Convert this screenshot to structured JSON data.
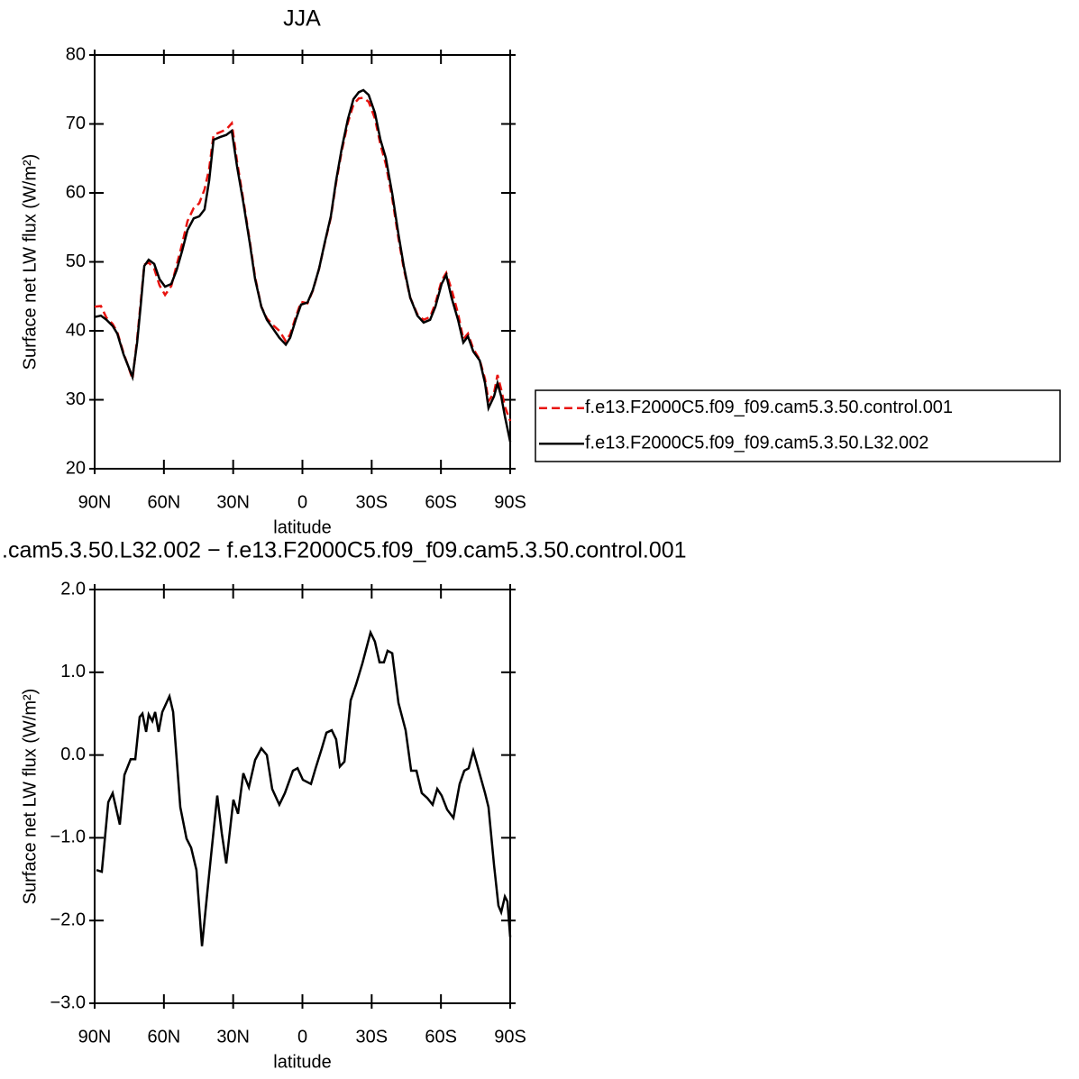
{
  "chart_data": [
    {
      "type": "line",
      "title": "JJA",
      "x_label": "latitude",
      "y_label": "Surface net LW flux (W/m²)",
      "xlim": [
        90,
        -90
      ],
      "xticks": [
        {
          "value": 90,
          "label": "90N"
        },
        {
          "value": 60,
          "label": "60N"
        },
        {
          "value": 30,
          "label": "30N"
        },
        {
          "value": 0,
          "label": "0"
        },
        {
          "value": -30,
          "label": "30S"
        },
        {
          "value": -60,
          "label": "60S"
        },
        {
          "value": -90,
          "label": "90S"
        }
      ],
      "ylim": [
        20,
        80
      ],
      "yticks": [
        20,
        30,
        40,
        50,
        60,
        70,
        80
      ],
      "legend": "right",
      "x": [
        90,
        87.3,
        84.9,
        82.2,
        80.2,
        77.5,
        75.6,
        73.6,
        71.6,
        70.1,
        68.5,
        66.6,
        64.2,
        61.9,
        59.5,
        56.8,
        54.5,
        52.1,
        49.8,
        47.1,
        44.7,
        42.4,
        40.4,
        38.5,
        35.7,
        33.0,
        30.6,
        28.3,
        25.6,
        22.8,
        20.5,
        17.8,
        15.4,
        12.7,
        10.0,
        7.2,
        5.3,
        2.9,
        0.6,
        -2.2,
        -4.5,
        -7.2,
        -9.6,
        -12.3,
        -14.6,
        -17.0,
        -19.7,
        -22.1,
        -24.4,
        -26.4,
        -28.7,
        -31.4,
        -33.8,
        -36.1,
        -38.9,
        -41.6,
        -43.9,
        -46.7,
        -49.8,
        -52.5,
        -55.3,
        -57.6,
        -60.3,
        -62.3,
        -64.6,
        -67.4,
        -69.7,
        -71.7,
        -74.0,
        -76.8,
        -79.1,
        -80.6,
        -83.0,
        -84.5,
        -86.1,
        -87.7,
        -90
      ],
      "series": [
        {
          "name": "f.e13.F2000C5.f09_f09.cam5.3.50.control.001",
          "color": "#e8130f",
          "dash": "dashed",
          "values": [
            43.5,
            43.6,
            41.9,
            41.0,
            39.8,
            36.8,
            35.0,
            33.0,
            38.8,
            44.0,
            49.6,
            49.9,
            49.0,
            46.6,
            45.2,
            46.5,
            49.5,
            52.6,
            55.9,
            57.8,
            58.5,
            60.5,
            63.5,
            68.4,
            68.8,
            69.2,
            70.1,
            64.5,
            59.0,
            53.0,
            47.8,
            43.5,
            41.8,
            40.8,
            40.0,
            38.5,
            39.5,
            42.0,
            44.2,
            44.0,
            45.8,
            49.0,
            52.6,
            56.4,
            61.5,
            66.0,
            70.2,
            72.8,
            73.7,
            73.8,
            73.2,
            70.8,
            67.0,
            64.2,
            59.2,
            53.4,
            49.0,
            44.8,
            42.4,
            41.6,
            42.0,
            44.0,
            47.3,
            48.4,
            46.0,
            42.5,
            38.8,
            39.6,
            37.4,
            35.8,
            33.0,
            29.8,
            31.0,
            33.6,
            31.5,
            29.0,
            26.9
          ]
        },
        {
          "name": "f.e13.F2000C5.f09_f09.cam5.3.50.L32.002",
          "color": "#000000",
          "dash": "solid",
          "values": [
            42.0,
            42.2,
            41.6,
            40.7,
            39.6,
            36.6,
            35.0,
            33.3,
            38.3,
            43.5,
            49.4,
            50.3,
            49.7,
            47.5,
            46.4,
            46.8,
            48.8,
            51.6,
            54.6,
            56.3,
            56.6,
            57.6,
            61.8,
            67.7,
            68.1,
            68.4,
            69.0,
            63.8,
            58.6,
            52.7,
            47.5,
            43.5,
            41.6,
            40.3,
            39.0,
            38.0,
            39.0,
            41.6,
            43.8,
            44.1,
            45.9,
            49.0,
            52.7,
            56.6,
            61.8,
            66.4,
            70.7,
            73.6,
            74.6,
            74.9,
            74.2,
            71.6,
            67.7,
            65.1,
            59.9,
            54.0,
            49.4,
            44.8,
            42.2,
            41.2,
            41.6,
            43.5,
            46.8,
            48.1,
            44.8,
            41.6,
            38.3,
            39.2,
            37.0,
            35.7,
            32.4,
            28.8,
            30.5,
            32.4,
            30.5,
            27.6,
            23.9
          ]
        }
      ]
    },
    {
      "type": "line",
      "title": ".cam5.3.50.L32.002 − f.e13.F2000C5.f09_f09.cam5.3.50.control.001",
      "x_label": "latitude",
      "y_label": "Surface net LW flux (W/m²)",
      "xlim": [
        90,
        -90
      ],
      "xticks": [
        {
          "value": 90,
          "label": "90N"
        },
        {
          "value": 60,
          "label": "60N"
        },
        {
          "value": 30,
          "label": "30N"
        },
        {
          "value": 0,
          "label": "0"
        },
        {
          "value": -30,
          "label": "30S"
        },
        {
          "value": -60,
          "label": "60S"
        },
        {
          "value": -90,
          "label": "90S"
        }
      ],
      "ylim": [
        -3,
        2
      ],
      "yticks": [
        {
          "value": 2,
          "label": "2.0"
        },
        {
          "value": 1,
          "label": "1.0"
        },
        {
          "value": 0,
          "label": "0.0"
        },
        {
          "value": -1,
          "label": "−1.0"
        },
        {
          "value": -2,
          "label": "−2.0"
        },
        {
          "value": -3,
          "label": "−3.0"
        }
      ],
      "x": [
        89.2,
        86.9,
        84.1,
        82.2,
        79.1,
        77.1,
        74.4,
        72.4,
        70.5,
        69.3,
        67.7,
        66.6,
        65.0,
        63.8,
        62.3,
        60.7,
        57.6,
        56.0,
        52.9,
        50.2,
        48.2,
        45.9,
        43.5,
        41.2,
        39.6,
        36.9,
        34.9,
        33.0,
        29.9,
        27.9,
        25.6,
        23.2,
        20.5,
        17.8,
        15.4,
        13.1,
        10.0,
        7.6,
        4.1,
        2.1,
        -0.2,
        -3.7,
        -5.7,
        -8.4,
        -10.4,
        -12.7,
        -14.6,
        -16.2,
        -18.2,
        -20.9,
        -23.2,
        -26.0,
        -29.5,
        -31.4,
        -33.4,
        -35.3,
        -36.9,
        -38.9,
        -41.6,
        -44.7,
        -47.1,
        -49.4,
        -51.7,
        -54.1,
        -56.4,
        -58.4,
        -60.3,
        -62.7,
        -65.4,
        -68.1,
        -70.1,
        -72.0,
        -74.0,
        -75.9,
        -79.1,
        -80.6,
        -83.0,
        -84.9,
        -86.1,
        -87.7,
        -88.8,
        -90
      ],
      "series": [
        {
          "color": "#000000",
          "values": [
            -1.39,
            -1.41,
            -0.57,
            -0.46,
            -0.84,
            -0.24,
            -0.05,
            -0.05,
            0.46,
            0.5,
            0.28,
            0.49,
            0.41,
            0.52,
            0.28,
            0.52,
            0.71,
            0.52,
            -0.63,
            -1.01,
            -1.12,
            -1.39,
            -2.31,
            -1.66,
            -1.22,
            -0.49,
            -0.95,
            -1.31,
            -0.54,
            -0.71,
            -0.22,
            -0.39,
            -0.06,
            0.08,
            0.0,
            -0.41,
            -0.6,
            -0.46,
            -0.19,
            -0.16,
            -0.3,
            -0.35,
            -0.16,
            0.08,
            0.27,
            0.3,
            0.19,
            -0.14,
            -0.08,
            0.66,
            0.85,
            1.11,
            1.48,
            1.37,
            1.12,
            1.12,
            1.26,
            1.23,
            0.63,
            0.3,
            -0.19,
            -0.19,
            -0.46,
            -0.52,
            -0.6,
            -0.41,
            -0.49,
            -0.66,
            -0.76,
            -0.35,
            -0.19,
            -0.16,
            0.05,
            -0.14,
            -0.46,
            -0.63,
            -1.33,
            -1.82,
            -1.9,
            -1.71,
            -1.77,
            -2.2
          ]
        }
      ]
    }
  ]
}
